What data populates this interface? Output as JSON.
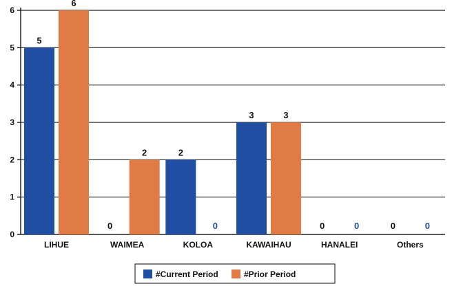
{
  "chart_data": {
    "type": "bar",
    "categories": [
      "LIHUE",
      "WAIMEA",
      "KOLOA",
      "KAWAIHAU",
      "HANALEI",
      "Others"
    ],
    "series": [
      {
        "name": "#Current Period",
        "values": [
          5,
          0,
          2,
          3,
          0,
          0
        ],
        "color": "#1f4ea3"
      },
      {
        "name": "#Prior Period",
        "values": [
          6,
          2,
          0,
          3,
          0,
          0
        ],
        "color": "#e07b45"
      }
    ],
    "ylim": [
      0,
      6
    ],
    "yticks": [
      0,
      1,
      2,
      3,
      4,
      5,
      6
    ],
    "grid": true,
    "legend_position": "bottom",
    "xlabel": "",
    "ylabel": "",
    "title": ""
  }
}
